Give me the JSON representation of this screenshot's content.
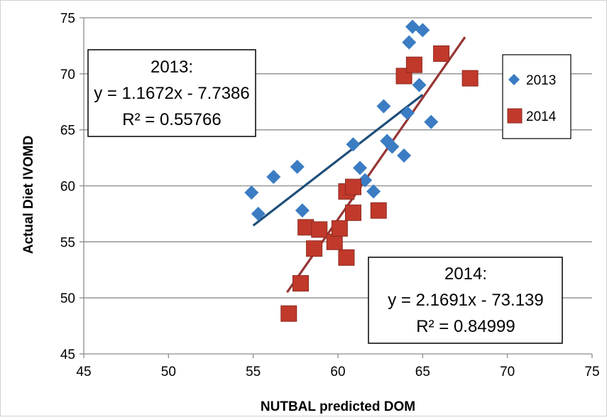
{
  "chart_data": {
    "type": "scatter",
    "title": "",
    "xlabel": "NUTBAL predicted DOM",
    "ylabel": "Actual Diet IVOMD",
    "xlim": [
      45,
      75
    ],
    "ylim": [
      45,
      75
    ],
    "xticks": [
      45,
      50,
      55,
      60,
      65,
      70,
      75
    ],
    "yticks": [
      45,
      50,
      55,
      60,
      65,
      70,
      75
    ],
    "grid": "horizontal",
    "legend_position": "right",
    "series": [
      {
        "name": "2013",
        "color": "#3b7cc3",
        "marker": "diamond",
        "points": [
          [
            54.9,
            59.4
          ],
          [
            55.3,
            57.5
          ],
          [
            56.2,
            60.8
          ],
          [
            57.6,
            61.7
          ],
          [
            57.9,
            57.8
          ],
          [
            60.9,
            63.7
          ],
          [
            61.3,
            61.6
          ],
          [
            61.6,
            60.5
          ],
          [
            62.1,
            59.5
          ],
          [
            62.7,
            67.1
          ],
          [
            62.9,
            64.0
          ],
          [
            63.2,
            63.5
          ],
          [
            63.9,
            62.7
          ],
          [
            64.1,
            66.5
          ],
          [
            64.2,
            72.8
          ],
          [
            64.4,
            74.2
          ],
          [
            64.8,
            69.0
          ],
          [
            65.0,
            73.9
          ],
          [
            65.5,
            65.7
          ]
        ],
        "trendline": {
          "x": [
            55.0,
            65.0
          ],
          "equation_label": "y = 1.1672x - 7.7386",
          "r2_label": "R² = 0.55766",
          "color": "#1f4e79"
        }
      },
      {
        "name": "2014",
        "color": "#c0392b",
        "marker": "square",
        "points": [
          [
            57.1,
            48.6
          ],
          [
            57.8,
            51.3
          ],
          [
            58.1,
            56.3
          ],
          [
            58.6,
            54.4
          ],
          [
            58.9,
            56.1
          ],
          [
            59.8,
            55.0
          ],
          [
            60.1,
            56.2
          ],
          [
            60.5,
            53.6
          ],
          [
            60.5,
            59.5
          ],
          [
            60.9,
            59.9
          ],
          [
            60.9,
            57.6
          ],
          [
            62.4,
            57.8
          ],
          [
            63.9,
            69.8
          ],
          [
            64.5,
            70.8
          ],
          [
            66.1,
            71.8
          ],
          [
            67.8,
            69.6
          ]
        ],
        "trendline": {
          "x": [
            57.0,
            67.5
          ],
          "equation_label": "y = 2.1691x - 73.139",
          "r2_label": "R² = 0.84999",
          "color": "#963634"
        }
      }
    ],
    "annotations": [
      {
        "year": "2013:",
        "equation": "y = 1.1672x - 7.7386",
        "r2": "R² = 0.55766"
      },
      {
        "year": "2014:",
        "equation": "y = 2.1691x - 73.139",
        "r2": "R² = 0.84999"
      }
    ],
    "legend": [
      "2013",
      "2014"
    ]
  }
}
